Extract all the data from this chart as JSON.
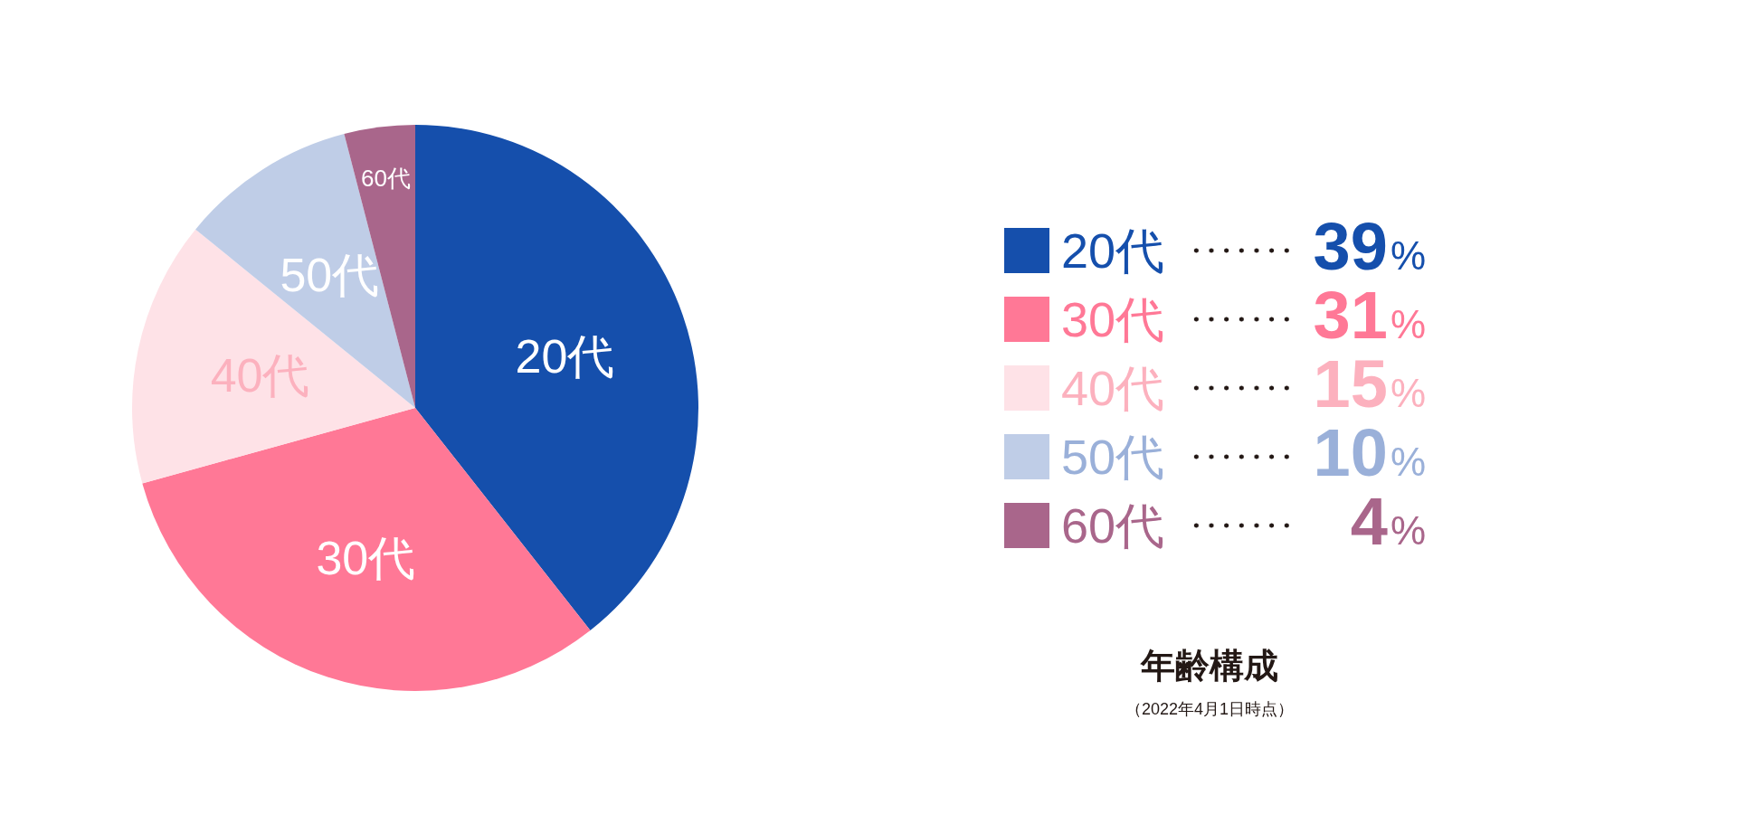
{
  "chart_data": {
    "type": "pie",
    "title": "年齢構成",
    "subtitle": "（2022年4月1日時点）",
    "categories": [
      "20代",
      "30代",
      "40代",
      "50代",
      "60代"
    ],
    "values": [
      39,
      31,
      15,
      10,
      4
    ],
    "colors": [
      "#154fac",
      "#ff7896",
      "#fee2e7",
      "#bfcde7",
      "#a9668b"
    ],
    "value_labels": [
      "39%",
      "31%",
      "15%",
      "10%",
      "4%"
    ],
    "legend": "right"
  }
}
